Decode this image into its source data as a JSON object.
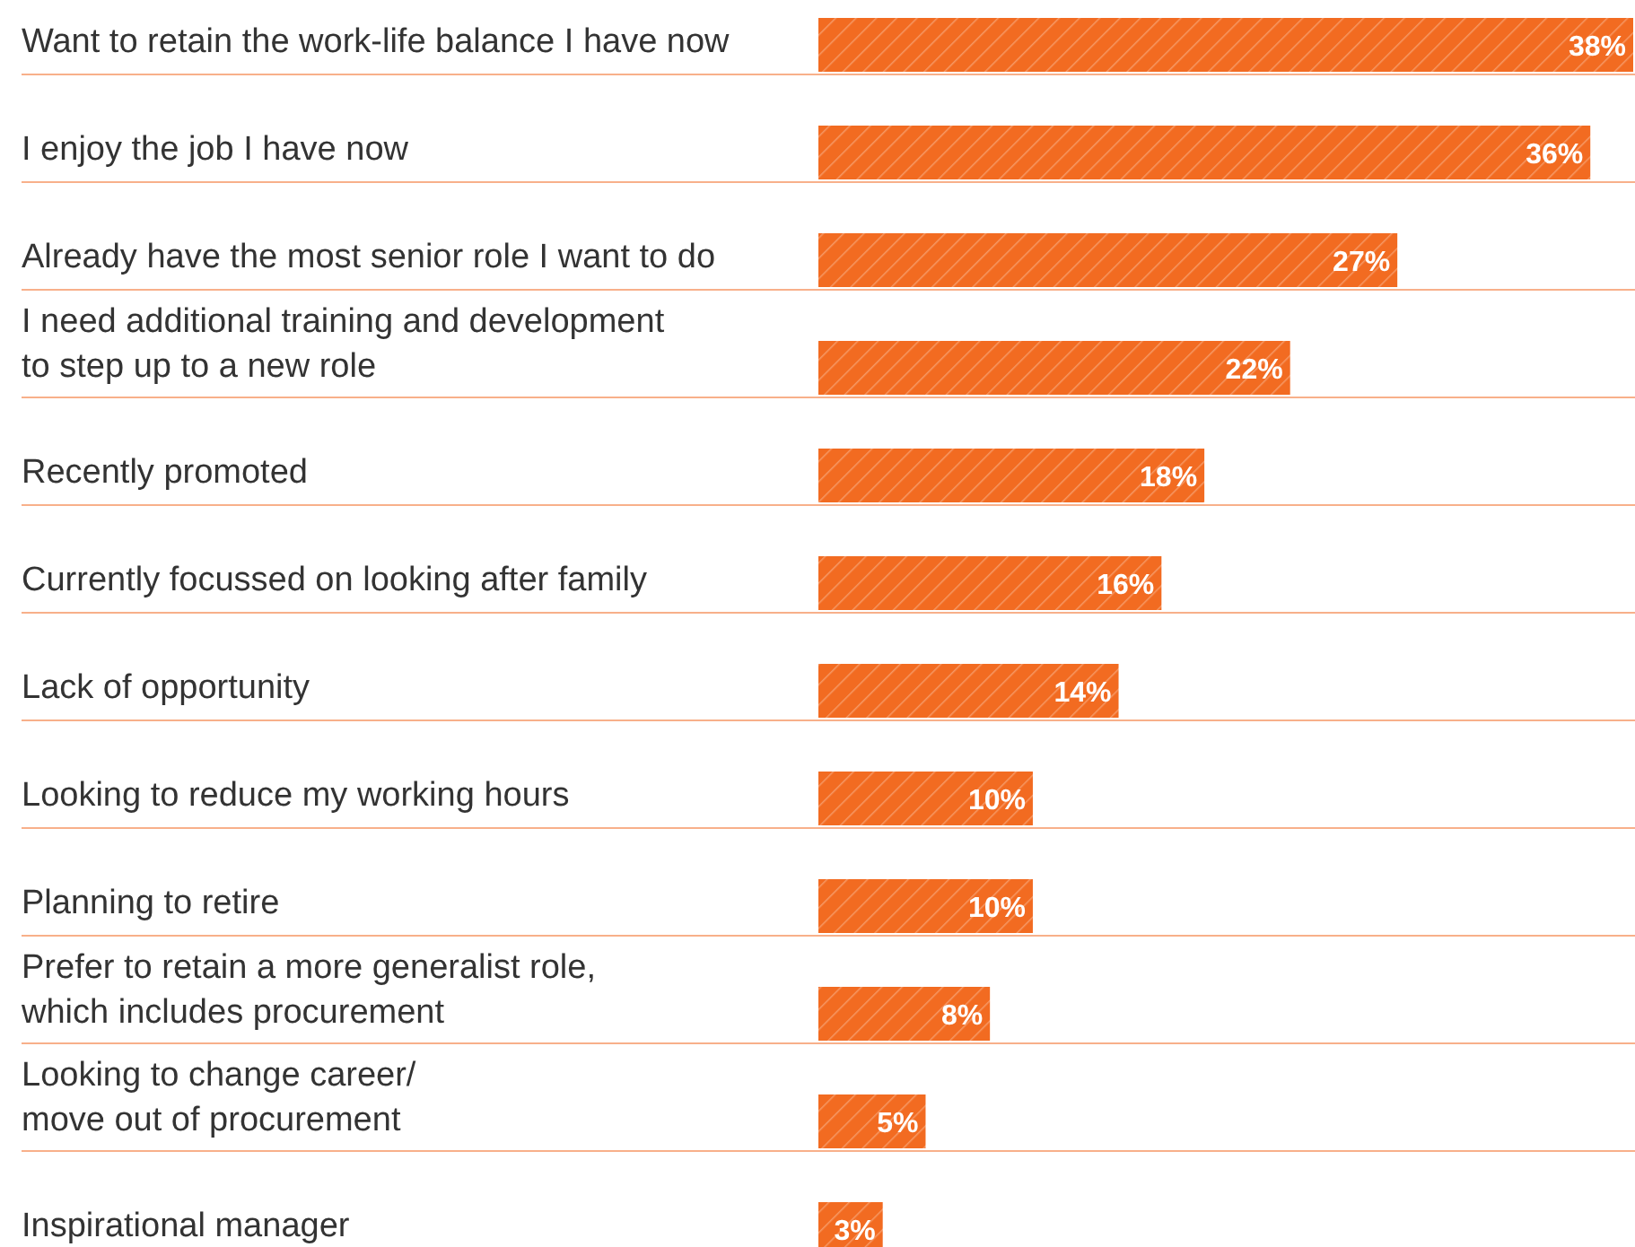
{
  "chart_data": {
    "type": "bar",
    "orientation": "horizontal",
    "value_labels": [
      "38%",
      "36%",
      "27%",
      "22%",
      "18%",
      "16%",
      "14%",
      "10%",
      "10%",
      "8%",
      "5%",
      "3%"
    ],
    "color": "#f26b21",
    "grid": "y",
    "categories": [
      "Want to retain the work-life balance I have now",
      "I enjoy the job I have now",
      "Already have the most senior role I want to do",
      "I need additional training and development\nto step up to a new role",
      "Recently promoted",
      "Currently focussed on looking after family",
      "Lack of opportunity",
      "Looking to reduce my working hours",
      "Planning to retire",
      "Prefer to retain a more generalist role,\nwhich includes procurement",
      "Looking to change career/\nmove out of procurement",
      "Inspirational manager"
    ],
    "values": [
      38,
      36,
      27,
      22,
      18,
      16,
      14,
      10,
      10,
      8,
      5,
      3
    ]
  }
}
